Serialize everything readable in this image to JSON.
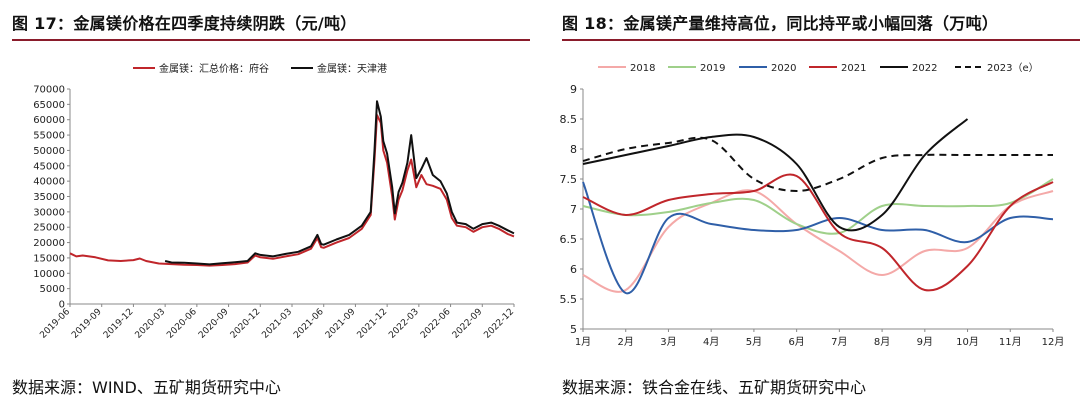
{
  "left": {
    "title": "图 17：金属镁价格在四季度持续阴跌（元/吨）",
    "source": "数据来源：WIND、五矿期货研究中心"
  },
  "right": {
    "title": "图 18：金属镁产量维持高位，同比持平或小幅回落（万吨）",
    "source": "数据来源：铁合金在线、五矿期货研究中心"
  },
  "chart_data": [
    {
      "type": "line",
      "ylim": [
        0,
        70000
      ],
      "ytick_step": 5000,
      "x_ticks": [
        "2019-06",
        "2019-09",
        "2019-12",
        "2020-03",
        "2020-06",
        "2020-09",
        "2020-12",
        "2021-03",
        "2021-06",
        "2021-09",
        "2021-12",
        "2022-03",
        "2022-06",
        "2022-09",
        "2022-12"
      ],
      "legend_position": "top",
      "colors": {
        "金属镁：汇总价格：府谷": "#c0262b",
        "金属镁：天津港": "#111111"
      },
      "series": [
        {
          "name": "金属镁：汇总价格：府谷",
          "points": [
            [
              0,
              16500
            ],
            [
              0.5,
              15500
            ],
            [
              1,
              15800
            ],
            [
              2,
              15200
            ],
            [
              3,
              14200
            ],
            [
              4,
              14000
            ],
            [
              5,
              14300
            ],
            [
              5.5,
              14800
            ],
            [
              6,
              14000
            ],
            [
              7,
              13200
            ],
            [
              8,
              13000
            ],
            [
              9,
              12800
            ],
            [
              10,
              12700
            ],
            [
              11,
              12500
            ],
            [
              12,
              12700
            ],
            [
              13,
              13000
            ],
            [
              14,
              13500
            ],
            [
              14.6,
              15800
            ],
            [
              15,
              15200
            ],
            [
              16,
              14700
            ],
            [
              17,
              15500
            ],
            [
              18,
              16200
            ],
            [
              19,
              18000
            ],
            [
              19.5,
              21500
            ],
            [
              19.8,
              18500
            ],
            [
              20,
              18300
            ],
            [
              21,
              20000
            ],
            [
              22,
              21500
            ],
            [
              23,
              24500
            ],
            [
              23.7,
              29000
            ],
            [
              24,
              47000
            ],
            [
              24.2,
              61500
            ],
            [
              24.5,
              59000
            ],
            [
              24.7,
              50000
            ],
            [
              25,
              46000
            ],
            [
              25.4,
              35000
            ],
            [
              25.6,
              27500
            ],
            [
              25.9,
              34000
            ],
            [
              26.2,
              37000
            ],
            [
              26.6,
              43500
            ],
            [
              26.9,
              47000
            ],
            [
              27.3,
              38000
            ],
            [
              27.7,
              42000
            ],
            [
              28.1,
              39000
            ],
            [
              28.6,
              38500
            ],
            [
              29.2,
              37500
            ],
            [
              29.7,
              34000
            ],
            [
              30.1,
              28000
            ],
            [
              30.5,
              25500
            ],
            [
              31.2,
              25000
            ],
            [
              31.8,
              23500
            ],
            [
              32.5,
              25000
            ],
            [
              33.2,
              25500
            ],
            [
              33.8,
              24500
            ],
            [
              34.5,
              22800
            ],
            [
              35,
              22000
            ]
          ]
        },
        {
          "name": "金属镁：天津港",
          "points": [
            [
              7.5,
              14000
            ],
            [
              8,
              13500
            ],
            [
              9,
              13400
            ],
            [
              10,
              13200
            ],
            [
              11,
              12900
            ],
            [
              12,
              13300
            ],
            [
              13,
              13600
            ],
            [
              14,
              14000
            ],
            [
              14.6,
              16500
            ],
            [
              15,
              16000
            ],
            [
              16,
              15500
            ],
            [
              17,
              16300
            ],
            [
              18,
              17000
            ],
            [
              19,
              18800
            ],
            [
              19.5,
              22500
            ],
            [
              19.8,
              19500
            ],
            [
              20,
              19300
            ],
            [
              21,
              21000
            ],
            [
              22,
              22500
            ],
            [
              23,
              25500
            ],
            [
              23.7,
              30000
            ],
            [
              24,
              50000
            ],
            [
              24.2,
              66000
            ],
            [
              24.5,
              61000
            ],
            [
              24.7,
              53000
            ],
            [
              25,
              49000
            ],
            [
              25.4,
              38000
            ],
            [
              25.6,
              29500
            ],
            [
              25.9,
              36500
            ],
            [
              26.2,
              39500
            ],
            [
              26.6,
              46000
            ],
            [
              26.9,
              55000
            ],
            [
              27.3,
              41000
            ],
            [
              27.7,
              44000
            ],
            [
              28.1,
              47500
            ],
            [
              28.6,
              42000
            ],
            [
              29.2,
              40000
            ],
            [
              29.7,
              36000
            ],
            [
              30.1,
              30000
            ],
            [
              30.5,
              26500
            ],
            [
              31.2,
              26000
            ],
            [
              31.8,
              24500
            ],
            [
              32.5,
              26000
            ],
            [
              33.2,
              26500
            ],
            [
              33.8,
              25500
            ],
            [
              34.5,
              24000
            ],
            [
              35,
              23000
            ]
          ]
        }
      ]
    },
    {
      "type": "line",
      "categories": [
        "1月",
        "2月",
        "3月",
        "4月",
        "5月",
        "6月",
        "7月",
        "8月",
        "9月",
        "10月",
        "11月",
        "12月"
      ],
      "ylim": [
        5,
        9
      ],
      "ytick_step": 0.5,
      "legend_position": "top",
      "colors": {
        "2018": "#f4a9a8",
        "2019": "#9fd08a",
        "2020": "#2f5fa8",
        "2021": "#c0262b",
        "2022": "#111111",
        "2023（e）": "#111111"
      },
      "series": [
        {
          "name": "2018",
          "values": [
            5.9,
            5.65,
            6.7,
            7.1,
            7.3,
            6.75,
            6.3,
            5.9,
            6.3,
            6.35,
            7.05,
            7.3
          ]
        },
        {
          "name": "2019",
          "values": [
            7.05,
            6.9,
            6.95,
            7.1,
            7.15,
            6.75,
            6.6,
            7.05,
            7.05,
            7.05,
            7.1,
            7.5
          ]
        },
        {
          "name": "2020",
          "values": [
            7.45,
            5.6,
            6.85,
            6.75,
            6.65,
            6.65,
            6.85,
            6.65,
            6.65,
            6.45,
            6.85,
            6.83
          ]
        },
        {
          "name": "2021",
          "values": [
            7.2,
            6.9,
            7.15,
            7.25,
            7.3,
            7.55,
            6.6,
            6.35,
            5.65,
            6.05,
            7.05,
            7.45
          ]
        },
        {
          "name": "2022",
          "values": [
            7.75,
            7.9,
            8.05,
            8.2,
            8.2,
            7.75,
            6.7,
            6.9,
            7.9,
            8.5,
            null,
            null
          ]
        },
        {
          "name": "2023（e）",
          "dashed": true,
          "values": [
            7.8,
            8.0,
            8.1,
            8.15,
            7.5,
            7.3,
            7.5,
            7.85,
            7.9,
            7.9,
            7.9,
            7.9
          ]
        }
      ]
    }
  ]
}
